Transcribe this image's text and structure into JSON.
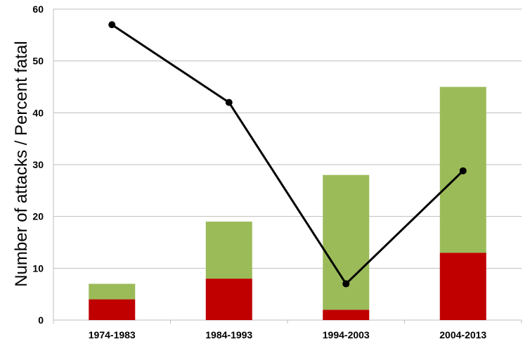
{
  "chart_data": {
    "type": "bar",
    "title": "",
    "xlabel": "",
    "ylabel": "Number of attacks / Percent fatal",
    "ylim": [
      0,
      60
    ],
    "yticks": [
      "0",
      "10",
      "20",
      "30",
      "40",
      "50",
      "60"
    ],
    "grid": true,
    "legend": "none",
    "stacked": true,
    "categories": [
      "1974-1983",
      "1984-1993",
      "1994-2003",
      "2004-2013"
    ],
    "series": [
      {
        "values": [
          4,
          8,
          2,
          13
        ],
        "color": "#c00000",
        "kind": "bar"
      },
      {
        "values": [
          3,
          11,
          26,
          32
        ],
        "color": "#9bbb59",
        "kind": "bar"
      },
      {
        "values": [
          57,
          42,
          7,
          28.8
        ],
        "color": "#000000",
        "kind": "line"
      }
    ]
  }
}
